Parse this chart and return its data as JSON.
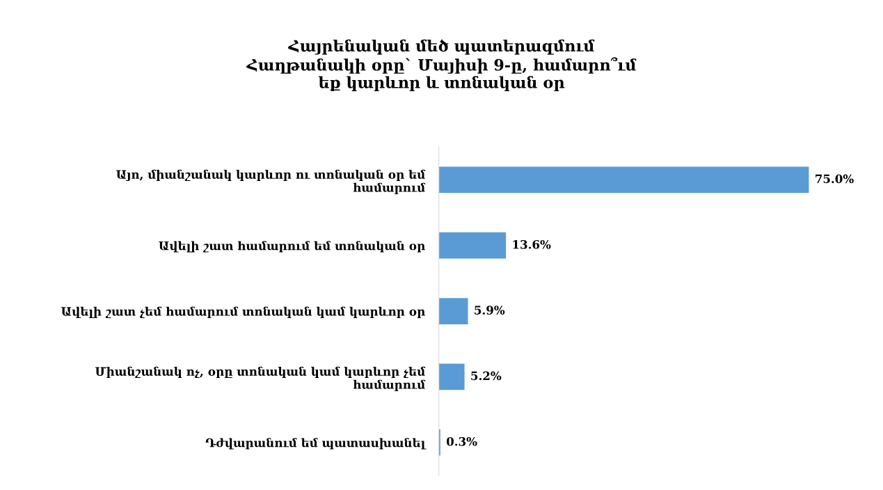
{
  "chart_data": {
    "type": "bar",
    "orientation": "horizontal",
    "title": "Հայրենական մեծ պատերազմում\nՀաղթանակի օրը` Մայիսի 9-ը, համարո՞ւմ\nեք կարևոր և տոնական օր",
    "categories": [
      "Այո, միանշանակ կարևոր ու տոնական օր եմ\nհամարում",
      "Ավելի շատ համարում եմ տոնական օր",
      "Ավելի շատ չեմ համարում տոնական կամ կարևոր օր",
      "Միանշանակ ոչ, օրը տոնական կամ կարևոր չեմ\nհամարում",
      "Դժվարանում եմ պատասխանել"
    ],
    "values": [
      75.0,
      13.6,
      5.9,
      5.2,
      0.3
    ],
    "value_labels": [
      "75.0%",
      "13.6%",
      "5.9%",
      "5.2%",
      "0.3%"
    ],
    "color": "#5b9bd5",
    "grid": false,
    "legend": false
  }
}
